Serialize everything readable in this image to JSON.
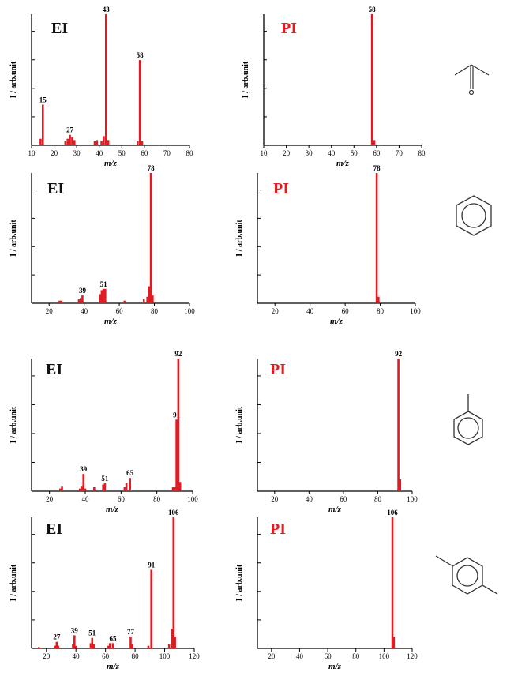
{
  "colors": {
    "bar": "#e11b22",
    "axis": "#000000",
    "pi_label": "#e11b22",
    "ei_label": "#111111",
    "molecule": "#333333"
  },
  "chart_data": [
    {
      "type": "bar",
      "title": "EI",
      "xlabel": "m/z",
      "ylabel": "I / arb.unit",
      "xlim": [
        10,
        80
      ],
      "xticks": [
        10,
        20,
        30,
        40,
        50,
        60,
        70,
        80
      ],
      "ylim": [
        0,
        1.0
      ],
      "peaks": [
        {
          "x": 14,
          "y": 0.05
        },
        {
          "x": 15,
          "y": 0.31,
          "label": "15"
        },
        {
          "x": 25,
          "y": 0.03
        },
        {
          "x": 26,
          "y": 0.05
        },
        {
          "x": 27,
          "y": 0.08,
          "label": "27"
        },
        {
          "x": 28,
          "y": 0.06
        },
        {
          "x": 29,
          "y": 0.04
        },
        {
          "x": 38,
          "y": 0.03
        },
        {
          "x": 39,
          "y": 0.04
        },
        {
          "x": 41,
          "y": 0.03
        },
        {
          "x": 42,
          "y": 0.07
        },
        {
          "x": 43,
          "y": 1.0,
          "label": "43"
        },
        {
          "x": 44,
          "y": 0.04
        },
        {
          "x": 57,
          "y": 0.03
        },
        {
          "x": 58,
          "y": 0.65,
          "label": "58"
        },
        {
          "x": 59,
          "y": 0.03
        }
      ]
    },
    {
      "type": "bar",
      "title": "PI",
      "xlabel": "m/z",
      "ylabel": "I / arb.unit",
      "xlim": [
        10,
        80
      ],
      "xticks": [
        10,
        20,
        30,
        40,
        50,
        60,
        70,
        80
      ],
      "ylim": [
        0,
        1.0
      ],
      "peaks": [
        {
          "x": 58,
          "y": 1.0,
          "label": "58"
        },
        {
          "x": 59,
          "y": 0.04
        }
      ]
    },
    {
      "type": "bar",
      "title": "EI",
      "xlabel": "m/z",
      "ylabel": "I / arb.unit",
      "xlim": [
        10,
        100
      ],
      "xticks": [
        20,
        40,
        60,
        80,
        100
      ],
      "ylim": [
        0,
        1.0
      ],
      "peaks": [
        {
          "x": 26,
          "y": 0.02
        },
        {
          "x": 27,
          "y": 0.02
        },
        {
          "x": 37,
          "y": 0.03
        },
        {
          "x": 38,
          "y": 0.04
        },
        {
          "x": 39,
          "y": 0.06,
          "label": "39"
        },
        {
          "x": 49,
          "y": 0.07
        },
        {
          "x": 50,
          "y": 0.1
        },
        {
          "x": 51,
          "y": 0.11,
          "label": "51"
        },
        {
          "x": 52,
          "y": 0.11
        },
        {
          "x": 63,
          "y": 0.02
        },
        {
          "x": 74,
          "y": 0.03
        },
        {
          "x": 76,
          "y": 0.05
        },
        {
          "x": 77,
          "y": 0.13
        },
        {
          "x": 78,
          "y": 1.0,
          "label": "78"
        },
        {
          "x": 79,
          "y": 0.06
        }
      ]
    },
    {
      "type": "bar",
      "title": "PI",
      "xlabel": "m/z",
      "ylabel": "I / arb.unit",
      "xlim": [
        10,
        100
      ],
      "xticks": [
        20,
        40,
        60,
        80,
        100
      ],
      "ylim": [
        0,
        1.0
      ],
      "peaks": [
        {
          "x": 78,
          "y": 1.0,
          "label": "78"
        },
        {
          "x": 79,
          "y": 0.05
        }
      ]
    },
    {
      "type": "bar",
      "title": "EI",
      "xlabel": "m/z",
      "ylabel": "I / arb.unit",
      "xlim": [
        10,
        100
      ],
      "xticks": [
        20,
        40,
        60,
        80,
        100
      ],
      "ylim": [
        0,
        1.0
      ],
      "peaks": [
        {
          "x": 26,
          "y": 0.02
        },
        {
          "x": 27,
          "y": 0.04
        },
        {
          "x": 37,
          "y": 0.02
        },
        {
          "x": 38,
          "y": 0.04
        },
        {
          "x": 39,
          "y": 0.13,
          "label": "39"
        },
        {
          "x": 40,
          "y": 0.02
        },
        {
          "x": 45,
          "y": 0.03
        },
        {
          "x": 50,
          "y": 0.05
        },
        {
          "x": 51,
          "y": 0.06,
          "label": "51"
        },
        {
          "x": 62,
          "y": 0.03
        },
        {
          "x": 63,
          "y": 0.06
        },
        {
          "x": 65,
          "y": 0.1,
          "label": "65"
        },
        {
          "x": 89,
          "y": 0.03
        },
        {
          "x": 90,
          "y": 0.03
        },
        {
          "x": 91,
          "y": 0.54,
          "label": "91"
        },
        {
          "x": 92,
          "y": 1.0,
          "label": "92"
        },
        {
          "x": 93,
          "y": 0.07
        }
      ]
    },
    {
      "type": "bar",
      "title": "PI",
      "xlabel": "m/z",
      "ylabel": "I / arb.unit",
      "xlim": [
        10,
        100
      ],
      "xticks": [
        20,
        40,
        60,
        80,
        100
      ],
      "ylim": [
        0,
        1.0
      ],
      "peaks": [
        {
          "x": 92,
          "y": 1.0,
          "label": "92"
        },
        {
          "x": 93,
          "y": 0.09
        }
      ]
    },
    {
      "type": "bar",
      "title": "EI",
      "xlabel": "m/z",
      "ylabel": "I / arb.unit",
      "xlim": [
        10,
        120
      ],
      "xticks": [
        20,
        40,
        60,
        80,
        100,
        120
      ],
      "ylim": [
        0,
        1.0
      ],
      "peaks": [
        {
          "x": 15,
          "y": 0.01
        },
        {
          "x": 26,
          "y": 0.02
        },
        {
          "x": 27,
          "y": 0.05,
          "label": "27"
        },
        {
          "x": 28,
          "y": 0.02
        },
        {
          "x": 38,
          "y": 0.03
        },
        {
          "x": 39,
          "y": 0.1,
          "label": "39"
        },
        {
          "x": 40,
          "y": 0.02
        },
        {
          "x": 50,
          "y": 0.04
        },
        {
          "x": 51,
          "y": 0.08,
          "label": "51"
        },
        {
          "x": 52,
          "y": 0.03
        },
        {
          "x": 62,
          "y": 0.02
        },
        {
          "x": 63,
          "y": 0.04
        },
        {
          "x": 65,
          "y": 0.04,
          "label": "65"
        },
        {
          "x": 77,
          "y": 0.09,
          "label": "77"
        },
        {
          "x": 78,
          "y": 0.03
        },
        {
          "x": 89,
          "y": 0.02
        },
        {
          "x": 91,
          "y": 0.6,
          "label": "91"
        },
        {
          "x": 103,
          "y": 0.03
        },
        {
          "x": 105,
          "y": 0.15
        },
        {
          "x": 106,
          "y": 1.0,
          "label": "106"
        },
        {
          "x": 107,
          "y": 0.09
        }
      ]
    },
    {
      "type": "bar",
      "title": "PI",
      "xlabel": "m/z",
      "ylabel": "I / arb.unit",
      "xlim": [
        10,
        120
      ],
      "xticks": [
        20,
        40,
        60,
        80,
        100,
        120
      ],
      "ylim": [
        0,
        1.0
      ],
      "peaks": [
        {
          "x": 106,
          "y": 1.0,
          "label": "106"
        },
        {
          "x": 107,
          "y": 0.09
        }
      ]
    }
  ]
}
